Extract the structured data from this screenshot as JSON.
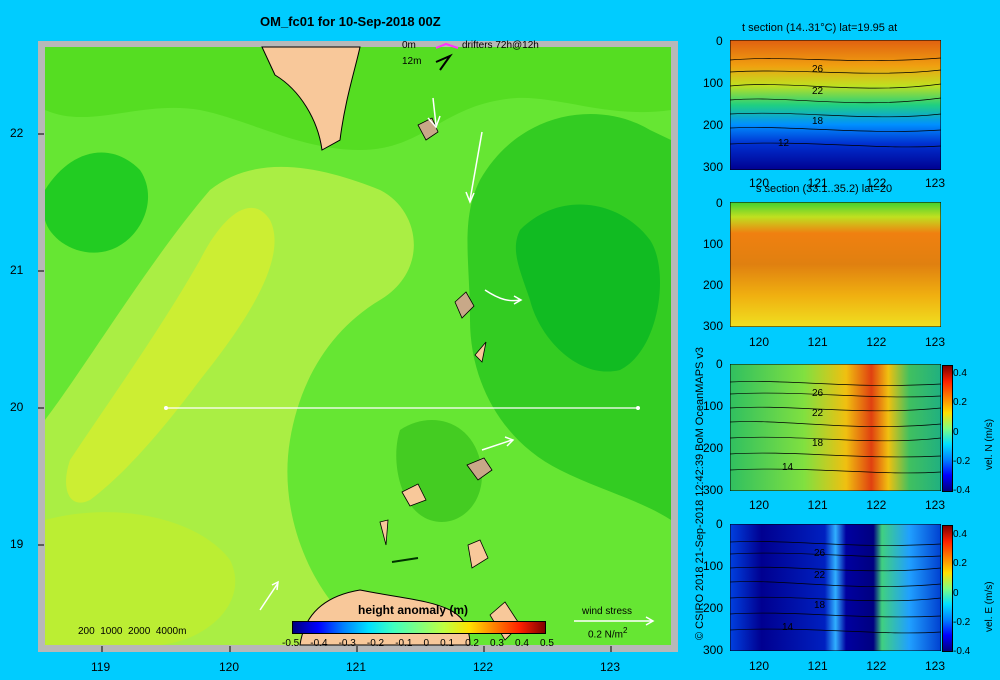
{
  "main": {
    "title": "OM_fc01 for 10-Sep-2018 00Z",
    "legend_0m": "0m",
    "legend_12m": "12m",
    "drifters_label": "drifters 72h@12h",
    "depth_legend": "200  1000  2000  4000m",
    "colorbar_title": "height anomaly  (m)",
    "colorbar_ticks": [
      "-0.5",
      "-0.4",
      "-0.3",
      "-0.2",
      "-0.1",
      "0",
      "0.1",
      "0.2",
      "0.3",
      "0.4",
      "0.5"
    ],
    "wind_label": "wind stress",
    "wind_scale": "0.2 N/m",
    "wind_scale_sup": "2",
    "x_ticks": [
      "119",
      "120",
      "121",
      "122",
      "123"
    ],
    "y_ticks": [
      "22",
      "21",
      "20",
      "19"
    ],
    "credit": "© CSIRO 2018   21-Sep-2018 12:42:39 BoM OceanMAPS v3",
    "section_lat": 20,
    "section_lon_range": [
      119.5,
      123.0
    ]
  },
  "panels": {
    "t_title": "t section (14..31°C) lat=19.95 at",
    "s_title": "s section (33.1..35.2) lat=20",
    "v_label": "vel. N  (m/s)",
    "u_label": "vel. E  (m/s)",
    "x_ticks": [
      "120",
      "121",
      "122",
      "123"
    ],
    "y_ticks": [
      "0",
      "100",
      "200",
      "300"
    ],
    "cb_ticks": [
      "0.4",
      "0.2",
      "0",
      "-0.2",
      "-0.4"
    ],
    "t_contours": [
      "26",
      "22",
      "18",
      "12"
    ],
    "v_contours": [
      "26",
      "22",
      "18",
      "14"
    ],
    "u_contours": [
      "26",
      "22",
      "18",
      "14"
    ]
  },
  "chart_data": {
    "type": "heatmap",
    "title": "OM_fc01 for 10-Sep-2018 00Z",
    "map_xlim": [
      118.5,
      123.5
    ],
    "map_ylim": [
      18.2,
      22.7
    ],
    "section_xlim": [
      119.5,
      123.2
    ],
    "section_ylim_depth": [
      0,
      300
    ],
    "height_anomaly_range": [
      -0.5,
      0.5
    ],
    "temperature_range": [
      14,
      31
    ],
    "salinity_range": [
      33.1,
      35.2
    ],
    "velocity_range": [
      -0.4,
      0.4
    ]
  }
}
